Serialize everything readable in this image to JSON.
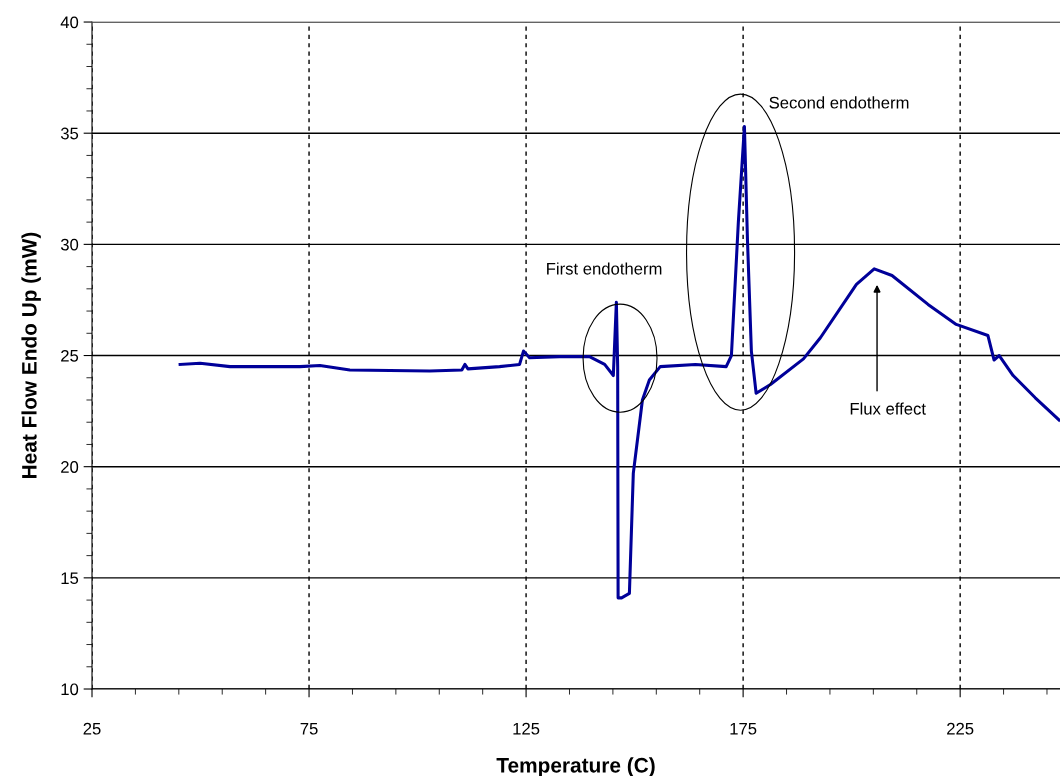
{
  "chart_data": {
    "type": "line",
    "xlabel": "Temperature (C)",
    "ylabel": "Heat Flow Endo Up (mW)",
    "xlim": [
      25,
      248
    ],
    "xticks": [
      25,
      75,
      125,
      175,
      225
    ],
    "ylim": [
      10,
      40
    ],
    "yticks": [
      10,
      15,
      20,
      25,
      30,
      35,
      40
    ],
    "grid": true,
    "marker": "none",
    "line_style": "solid",
    "series": [
      {
        "color": "#000099",
        "x": [
          45.3,
          49.9,
          56.8,
          72.9,
          77.5,
          84.4,
          102.8,
          110.2,
          110.9,
          111.6,
          118.9,
          123.5,
          124.4,
          125.8,
          132.7,
          139.6,
          143.1,
          145.1,
          145.8,
          146.1,
          146.2,
          147.0,
          148.8,
          149.7,
          151.8,
          153.4,
          155.9,
          164.0,
          171.1,
          172.3,
          173.9,
          175.3,
          176.0,
          176.9,
          178.0,
          181.3,
          188.9,
          192.8,
          201.1,
          205.2,
          209.3,
          217.6,
          224.1,
          231.4,
          232.8,
          234.0,
          237.2,
          242.3,
          247.8
        ],
        "values": [
          24.6,
          24.65,
          24.5,
          24.5,
          24.55,
          24.35,
          24.3,
          24.35,
          24.6,
          24.4,
          24.5,
          24.6,
          25.2,
          24.9,
          24.95,
          24.95,
          24.6,
          24.1,
          27.4,
          24.5,
          14.1,
          14.1,
          14.3,
          19.7,
          23.0,
          23.9,
          24.5,
          24.6,
          24.5,
          25.0,
          31.0,
          35.3,
          30.2,
          25.2,
          23.3,
          23.7,
          24.85,
          25.8,
          28.2,
          28.9,
          28.6,
          27.3,
          26.4,
          25.9,
          24.8,
          25.0,
          24.1,
          23.1,
          22.1
        ]
      }
    ],
    "annotations": [
      "First endotherm",
      "Second endotherm",
      "Flux effect"
    ]
  }
}
